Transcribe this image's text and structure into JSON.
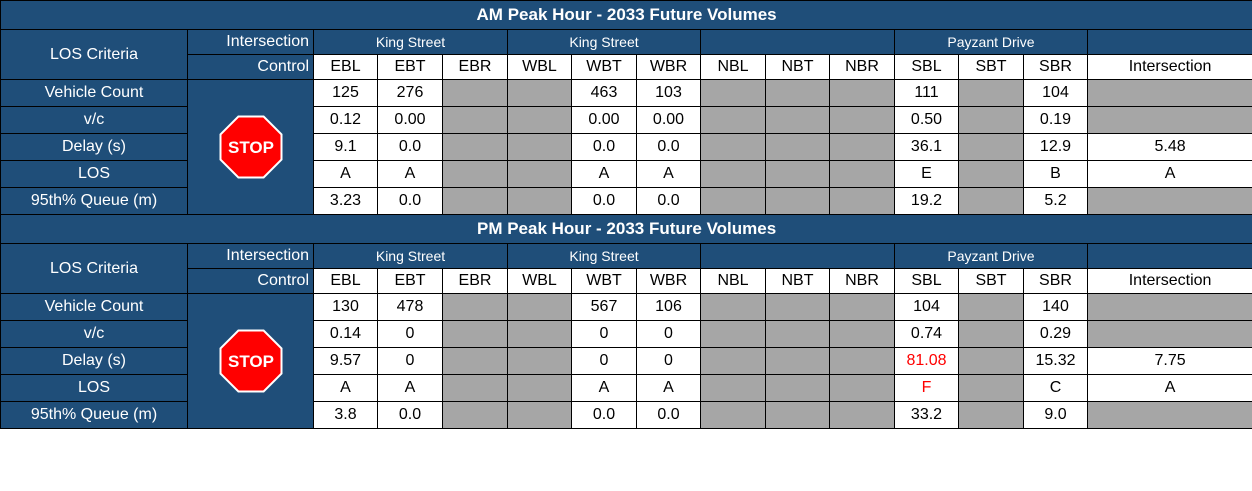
{
  "sections": [
    {
      "title": "AM Peak Hour - 2033 Future Volumes",
      "header": {
        "los_criteria": "LOS Criteria",
        "control_top": "Intersection",
        "control_bottom": "Control",
        "groups": [
          "King Street",
          "King Street",
          null,
          "Payzant Drive"
        ],
        "movements": [
          "EBL",
          "EBT",
          "EBR",
          "WBL",
          "WBT",
          "WBR",
          "NBL",
          "NBT",
          "NBR",
          "SBL",
          "SBT",
          "SBR"
        ],
        "intersection": "Intersection"
      },
      "stop_label": "STOP",
      "rows": [
        {
          "label": "Vehicle Count",
          "cells": [
            "125",
            "276",
            null,
            null,
            "463",
            "103",
            null,
            null,
            null,
            "111",
            null,
            "104"
          ],
          "intersection": null
        },
        {
          "label": "v/c",
          "cells": [
            "0.12",
            "0.00",
            null,
            null,
            "0.00",
            "0.00",
            null,
            null,
            null,
            "0.50",
            null,
            "0.19"
          ],
          "intersection": null
        },
        {
          "label": "Delay (s)",
          "cells": [
            "9.1",
            "0.0",
            null,
            null,
            "0.0",
            "0.0",
            null,
            null,
            null,
            "36.1",
            null,
            "12.9"
          ],
          "intersection": "5.48"
        },
        {
          "label": "LOS",
          "cells": [
            "A",
            "A",
            null,
            null,
            "A",
            "A",
            null,
            null,
            null,
            "E",
            null,
            "B"
          ],
          "intersection": "A"
        },
        {
          "label": "95th% Queue (m)",
          "cells": [
            "3.23",
            "0.0",
            null,
            null,
            "0.0",
            "0.0",
            null,
            null,
            null,
            "19.2",
            null,
            "5.2"
          ],
          "intersection": null
        }
      ]
    },
    {
      "title": "PM Peak Hour - 2033 Future Volumes",
      "header": {
        "los_criteria": "LOS Criteria",
        "control_top": "Intersection",
        "control_bottom": "Control",
        "groups": [
          "King Street",
          "King Street",
          null,
          "Payzant Drive"
        ],
        "movements": [
          "EBL",
          "EBT",
          "EBR",
          "WBL",
          "WBT",
          "WBR",
          "NBL",
          "NBT",
          "NBR",
          "SBL",
          "SBT",
          "SBR"
        ],
        "intersection": "Intersection"
      },
      "stop_label": "STOP",
      "rows": [
        {
          "label": "Vehicle Count",
          "cells": [
            "130",
            "478",
            null,
            null,
            "567",
            "106",
            null,
            null,
            null,
            "104",
            null,
            "140"
          ],
          "intersection": null
        },
        {
          "label": "v/c",
          "cells": [
            "0.14",
            "0",
            null,
            null,
            "0",
            "0",
            null,
            null,
            null,
            "0.74",
            null,
            "0.29"
          ],
          "intersection": null
        },
        {
          "label": "Delay (s)",
          "cells": [
            "9.57",
            "0",
            null,
            null,
            "0",
            "0",
            null,
            null,
            null,
            {
              "text": "81.08",
              "color": "#ff0000"
            },
            null,
            "15.32"
          ],
          "intersection": "7.75"
        },
        {
          "label": "LOS",
          "cells": [
            "A",
            "A",
            null,
            null,
            "A",
            "A",
            null,
            null,
            null,
            {
              "text": "F",
              "color": "#ff0000"
            },
            null,
            "C"
          ],
          "intersection": "A"
        },
        {
          "label": "95th% Queue (m)",
          "cells": [
            "3.8",
            "0.0",
            null,
            null,
            "0.0",
            "0.0",
            null,
            null,
            null,
            "33.2",
            null,
            "9.0"
          ],
          "intersection": null
        }
      ]
    }
  ]
}
